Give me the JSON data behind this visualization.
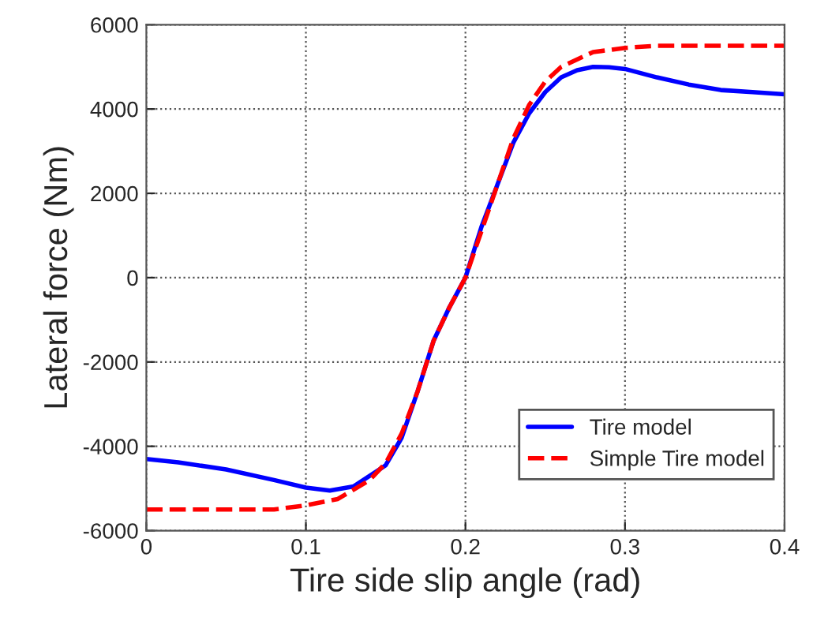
{
  "chart_data": {
    "type": "line",
    "xlabel": "Tire side slip angle (rad)",
    "ylabel": "Lateral force (Nm)",
    "xlim": [
      0,
      0.4
    ],
    "xticks": [
      0,
      0.1,
      0.2,
      0.3,
      0.4
    ],
    "ylim": [
      -6000,
      6000
    ],
    "yticks": [
      -6000,
      -4000,
      -2000,
      0,
      2000,
      4000,
      6000
    ],
    "grid": true,
    "legend": "lower right",
    "series": [
      {
        "name": "Tire model",
        "color": "#0000ff",
        "line_style": "solid",
        "x": [
          0,
          0.02,
          0.05,
          0.08,
          0.1,
          0.115,
          0.13,
          0.15,
          0.16,
          0.17,
          0.18,
          0.19,
          0.2,
          0.21,
          0.22,
          0.23,
          0.24,
          0.25,
          0.26,
          0.27,
          0.28,
          0.29,
          0.3,
          0.32,
          0.34,
          0.36,
          0.38,
          0.4
        ],
        "values": [
          -4300,
          -4380,
          -4550,
          -4800,
          -4980,
          -5050,
          -4950,
          -4450,
          -3800,
          -2700,
          -1500,
          -700,
          0,
          1200,
          2200,
          3200,
          3900,
          4400,
          4750,
          4920,
          5000,
          4990,
          4950,
          4750,
          4580,
          4450,
          4400,
          4350
        ]
      },
      {
        "name": "Simple Tire model",
        "color": "#ff0000",
        "line_style": "dashed",
        "x": [
          0,
          0.04,
          0.08,
          0.1,
          0.12,
          0.14,
          0.15,
          0.16,
          0.17,
          0.18,
          0.19,
          0.2,
          0.21,
          0.22,
          0.23,
          0.24,
          0.25,
          0.26,
          0.28,
          0.3,
          0.32,
          0.35,
          0.4
        ],
        "values": [
          -5500,
          -5500,
          -5500,
          -5400,
          -5250,
          -4800,
          -4400,
          -3700,
          -2700,
          -1500,
          -700,
          0,
          1100,
          2200,
          3300,
          4100,
          4650,
          5000,
          5350,
          5450,
          5500,
          5500,
          5500
        ]
      }
    ]
  }
}
